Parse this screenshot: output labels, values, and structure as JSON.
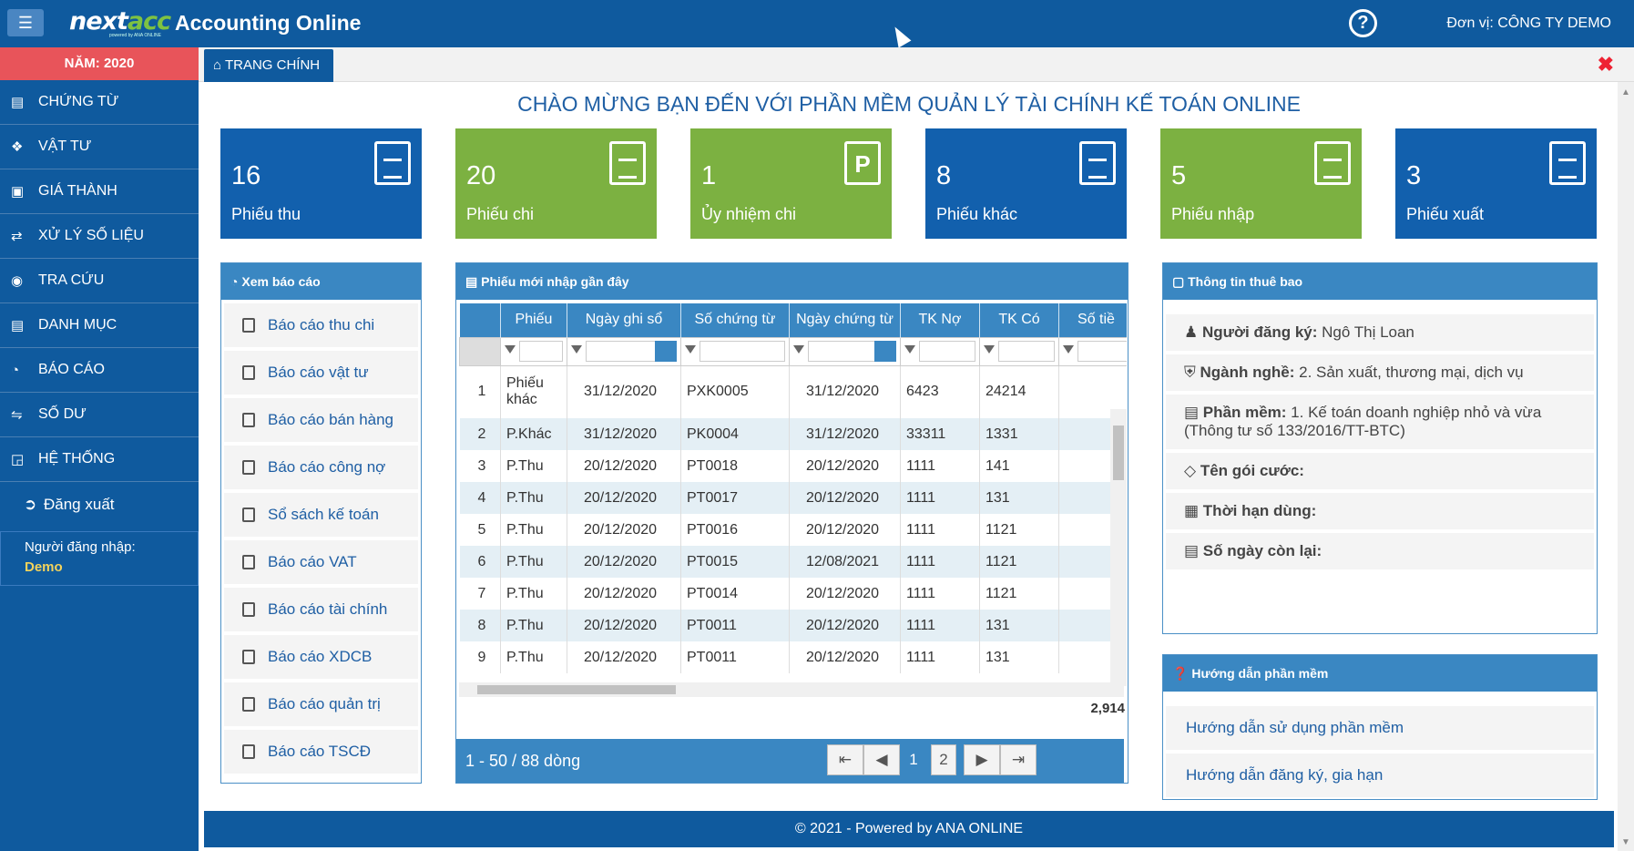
{
  "header": {
    "menu_icon": "hamburger-icon",
    "logo_main": "next",
    "logo_accent": "acc",
    "logo_sub": "powered by ANA ONLINE",
    "app_title": "Accounting Online",
    "help_icon": "question-circle-icon",
    "unit_label": "Đơn vị: CÔNG TY DEMO"
  },
  "sidebar": {
    "year": "NĂM: 2020",
    "items": [
      {
        "label": "CHỨNG TỪ",
        "icon": "list-icon"
      },
      {
        "label": "VẬT TƯ",
        "icon": "cubes-icon"
      },
      {
        "label": "GIÁ THÀNH",
        "icon": "money-icon"
      },
      {
        "label": "XỬ LÝ SỐ LIỆU",
        "icon": "exchange-icon"
      },
      {
        "label": "TRA CỨU",
        "icon": "binoculars-icon"
      },
      {
        "label": "DANH MỤC",
        "icon": "list-alt-icon"
      },
      {
        "label": "BÁO CÁO",
        "icon": "pie-chart-icon"
      },
      {
        "label": "SỐ DƯ",
        "icon": "random-icon"
      },
      {
        "label": "HỆ THỐNG",
        "icon": "sitemap-icon"
      }
    ],
    "logout": "Đăng xuất",
    "login_label": "Người đăng nhập:",
    "login_name": "Demo"
  },
  "tabs": {
    "home": "TRANG CHÍNH"
  },
  "welcome": "CHÀO MỪNG BẠN ĐẾN VỚI PHẦN MỀM QUẢN LÝ TÀI CHÍNH KẾ TOÁN ONLINE",
  "tiles": [
    {
      "num": "16",
      "label": "Phiếu thu",
      "color": "#1260ad"
    },
    {
      "num": "20",
      "label": "Phiếu chi",
      "color": "#7cb141"
    },
    {
      "num": "1",
      "label": "Ủy nhiệm chi",
      "color": "#7cb141"
    },
    {
      "num": "8",
      "label": "Phiếu khác",
      "color": "#1260ad"
    },
    {
      "num": "5",
      "label": "Phiếu nhập",
      "color": "#7cb141"
    },
    {
      "num": "3",
      "label": "Phiếu xuất",
      "color": "#1260ad"
    }
  ],
  "reports": {
    "title": "Xem báo cáo",
    "items": [
      "Báo cáo thu chi",
      "Báo cáo vật tư",
      "Báo cáo bán hàng",
      "Báo cáo công nợ",
      "Sổ sách kế toán",
      "Báo cáo VAT",
      "Báo cáo tài chính",
      "Báo cáo XDCB",
      "Báo cáo quản trị",
      "Báo cáo TSCĐ"
    ]
  },
  "recent": {
    "title": "Phiếu mới nhập gần đây",
    "columns": [
      "Phiếu",
      "Ngày ghi sổ",
      "Số chứng từ",
      "Ngày chứng từ",
      "TK Nợ",
      "TK Có",
      "Số tiề"
    ],
    "rows": [
      [
        "1",
        "Phiếu khác",
        "31/12/2020",
        "PXK0005",
        "31/12/2020",
        "6423",
        "24214"
      ],
      [
        "2",
        "P.Khác",
        "31/12/2020",
        "PK0004",
        "31/12/2020",
        "33311",
        "1331"
      ],
      [
        "3",
        "P.Thu",
        "20/12/2020",
        "PT0018",
        "20/12/2020",
        "1111",
        "141"
      ],
      [
        "4",
        "P.Thu",
        "20/12/2020",
        "PT0017",
        "20/12/2020",
        "1111",
        "131"
      ],
      [
        "5",
        "P.Thu",
        "20/12/2020",
        "PT0016",
        "20/12/2020",
        "1111",
        "1121"
      ],
      [
        "6",
        "P.Thu",
        "20/12/2020",
        "PT0015",
        "12/08/2021",
        "1111",
        "1121"
      ],
      [
        "7",
        "P.Thu",
        "20/12/2020",
        "PT0014",
        "20/12/2020",
        "1111",
        "1121"
      ],
      [
        "8",
        "P.Thu",
        "20/12/2020",
        "PT0011",
        "20/12/2020",
        "1111",
        "131"
      ],
      [
        "9",
        "P.Thu",
        "20/12/2020",
        "PT0011",
        "20/12/2020",
        "1111",
        "131"
      ]
    ],
    "total": "2,914",
    "pager_text": "1 - 50 / 88 dòng",
    "page1": "1",
    "page2": "2"
  },
  "subscription": {
    "title": "Thông tin thuê bao",
    "registrant_label": "Người đăng ký:",
    "registrant": "Ngô Thị Loan",
    "industry_label": "Ngành nghề:",
    "industry": "2. Sản xuất, thương mại, dịch vụ",
    "software_label": "Phần mềm:",
    "software": "1. Kế toán doanh nghiệp nhỏ và vừa (Thông tư số 133/2016/TT-BTC)",
    "package_label": "Tên gói cước:",
    "duration_label": "Thời hạn dùng:",
    "days_left_label": "Số ngày còn lại:"
  },
  "guide": {
    "title": "Hướng dẫn phần mềm",
    "items": [
      "Hướng dẫn sử dụng phần mềm",
      "Hướng dẫn đăng ký, gia hạn"
    ]
  },
  "footer": "© 2021 - Powered by ANA ONLINE"
}
